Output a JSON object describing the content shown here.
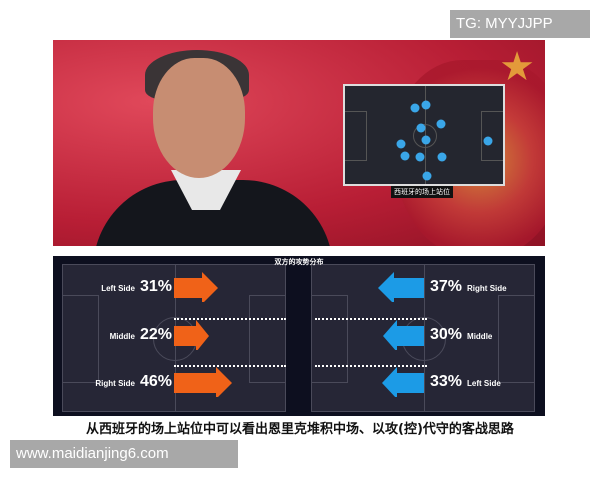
{
  "watermark_top": "TG: MYYJJPP",
  "watermark_bottom": "www.maidianjing6.com",
  "inset": {
    "label": "西班牙的场上站位"
  },
  "panel": {
    "title": "双方的攻势分布",
    "left_team": {
      "color": "#f06218",
      "rows": [
        {
          "label": "Left Side",
          "value": "31%"
        },
        {
          "label": "Middle",
          "value": "22%"
        },
        {
          "label": "Right Side",
          "value": "46%"
        }
      ]
    },
    "right_team": {
      "color": "#1c9be6",
      "rows": [
        {
          "label": "Right Side",
          "value": "37%"
        },
        {
          "label": "Middle",
          "value": "30%"
        },
        {
          "label": "Left Side",
          "value": "33%"
        }
      ]
    }
  },
  "caption": "从西班牙的场上站位中可以看出恩里克堆积中场、以攻(控)代守的客战思路"
}
